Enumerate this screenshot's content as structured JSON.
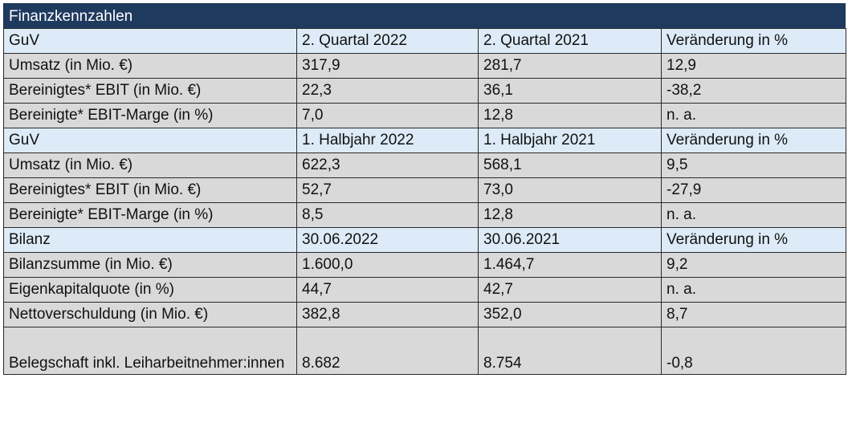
{
  "title": "Finanzkennzahlen",
  "sections": [
    {
      "header": [
        "GuV",
        "2. Quartal 2022",
        "2. Quartal 2021",
        "Veränderung in %"
      ],
      "rows": [
        [
          "Umsatz (in Mio. €)",
          "317,9",
          "281,7",
          "12,9"
        ],
        [
          "Bereinigtes* EBIT (in Mio. €)",
          "22,3",
          "36,1",
          "-38,2"
        ],
        [
          "Bereinigte* EBIT-Marge (in %)",
          "7,0",
          "12,8",
          "n. a."
        ]
      ]
    },
    {
      "header": [
        "GuV",
        "1. Halbjahr 2022",
        "1. Halbjahr 2021",
        "Veränderung in %"
      ],
      "rows": [
        [
          "Umsatz (in Mio. €)",
          "622,3",
          "568,1",
          "9,5"
        ],
        [
          "Bereinigtes* EBIT (in Mio. €)",
          "52,7",
          "73,0",
          "-27,9"
        ],
        [
          "Bereinigte* EBIT-Marge (in %)",
          "8,5",
          "12,8",
          "n. a."
        ]
      ]
    },
    {
      "header": [
        "Bilanz",
        "30.06.2022",
        "30.06.2021",
        "Veränderung in %"
      ],
      "rows": [
        [
          "Bilanzsumme (in Mio. €)",
          "1.600,0",
          "1.464,7",
          "9,2"
        ],
        [
          "Eigenkapitalquote (in %)",
          "44,7",
          "42,7",
          "n. a."
        ],
        [
          "Nettoverschuldung (in Mio. €)",
          "382,8",
          "352,0",
          "8,7"
        ]
      ]
    }
  ],
  "last_row": [
    "Belegschaft inkl. Leiharbeitnehmer:innen",
    "8.682",
    "8.754",
    "-0,8"
  ]
}
